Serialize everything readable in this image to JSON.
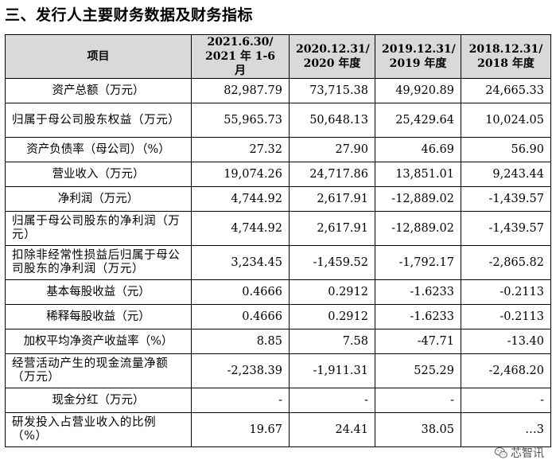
{
  "title": "三、发行人主要财务数据及财务指标",
  "header": {
    "item": "项目",
    "periods": [
      [
        "2021.6.30/",
        "2021 年 1-6 月"
      ],
      [
        "2020.12.31/",
        "2020 年度"
      ],
      [
        "2019.12.31/",
        "2019 年度"
      ],
      [
        "2018.12.31/",
        "2018 年度"
      ]
    ]
  },
  "rows": [
    {
      "label": "资产总额（万元）",
      "values": [
        "82,987.79",
        "73,715.38",
        "49,920.89",
        "24,665.33"
      ]
    },
    {
      "label": "归属于母公司股东权益（万元）",
      "values": [
        "55,965.73",
        "50,648.13",
        "25,429.64",
        "10,024.05"
      ]
    },
    {
      "label": "资产负债率（母公司）（%）",
      "values": [
        "27.32",
        "27.90",
        "46.69",
        "56.90"
      ]
    },
    {
      "label": "营业收入（万元）",
      "values": [
        "19,074.26",
        "24,717.86",
        "13,851.01",
        "9,243.44"
      ]
    },
    {
      "label": "净利润（万元）",
      "values": [
        "4,744.92",
        "2,617.91",
        "-12,889.02",
        "-1,439.57"
      ]
    },
    {
      "label": "归属于母公司股东的净利润（万元）",
      "values": [
        "4,744.92",
        "2,617.91",
        "-12,889.02",
        "-1,439.57"
      ]
    },
    {
      "label": "扣除非经常性损益后归属于母公司股东的净利润（万元）",
      "values": [
        "3,234.45",
        "-1,459.52",
        "-1,792.17",
        "-2,865.82"
      ]
    },
    {
      "label": "基本每股收益（元）",
      "values": [
        "0.4666",
        "0.2912",
        "-1.6233",
        "-0.2113"
      ]
    },
    {
      "label": "稀释每股收益（元）",
      "values": [
        "0.4666",
        "0.2912",
        "-1.6233",
        "-0.2113"
      ]
    },
    {
      "label": "加权平均净资产收益率（%）",
      "values": [
        "8.85",
        "7.58",
        "-47.71",
        "-13.40"
      ]
    },
    {
      "label": "经营活动产生的现金流量净额（万元）",
      "values": [
        "-2,238.39",
        "-1,911.31",
        "525.29",
        "-2,468.20"
      ]
    },
    {
      "label": "现金分红（万元）",
      "values": [
        "-",
        "-",
        "-",
        "-"
      ]
    },
    {
      "label": "研发投入占营业收入的比例（%）",
      "values": [
        "19.67",
        "24.41",
        "38.05",
        "…3"
      ]
    }
  ],
  "watermark": {
    "text": "芯智讯",
    "icon": "wechat-icon"
  }
}
